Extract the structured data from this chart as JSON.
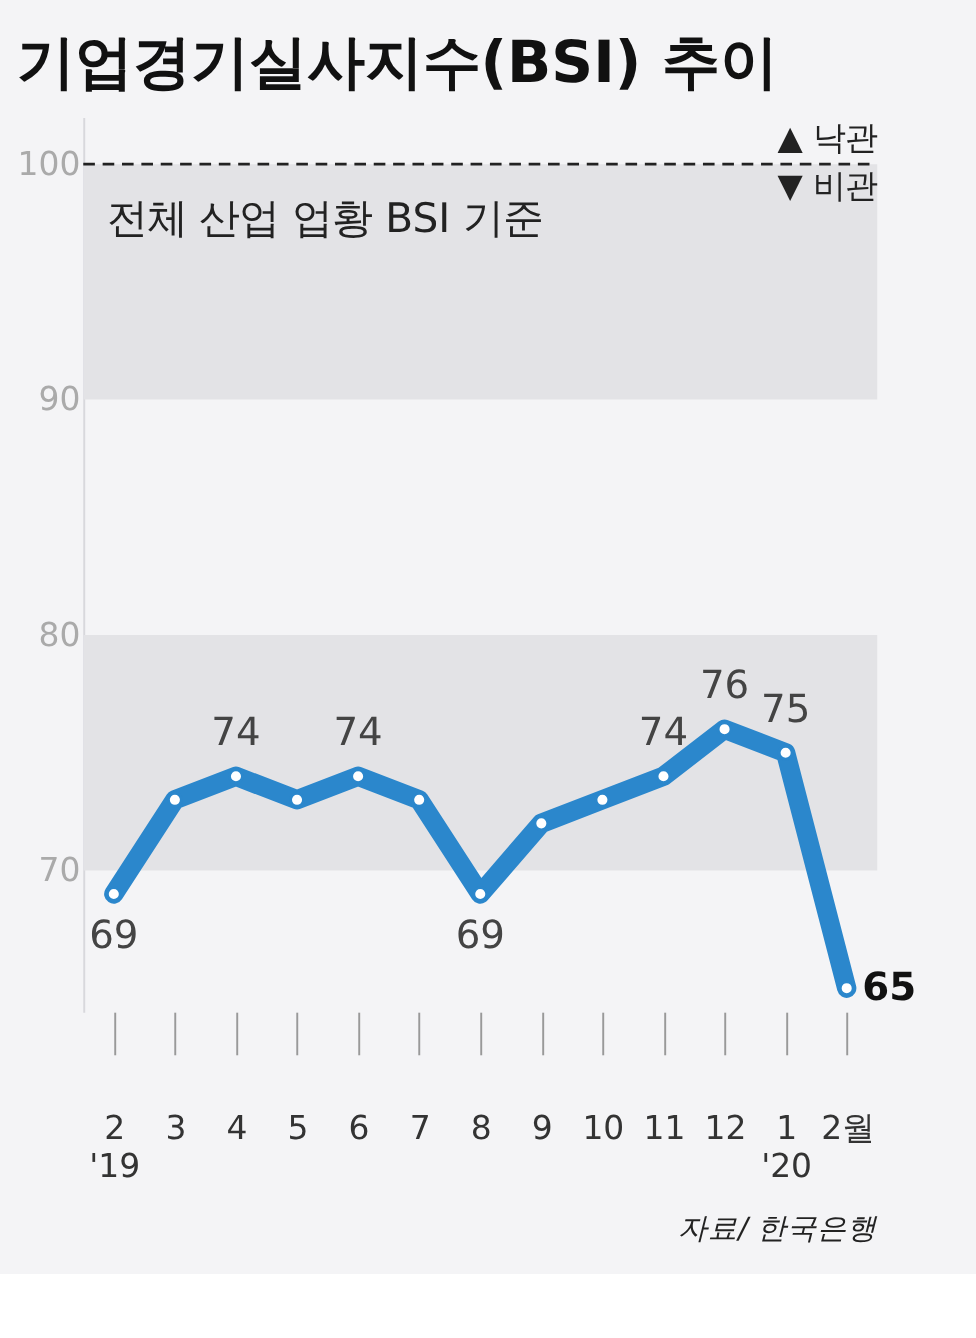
{
  "chart_data": {
    "type": "line",
    "title": "기업경기실사지수(BSI) 추이",
    "categories": [
      "2\n'19",
      "3",
      "4",
      "5",
      "6",
      "7",
      "8",
      "9",
      "10",
      "11",
      "12",
      "1\n'20",
      "2월"
    ],
    "series": [
      {
        "color": "#2b87cc",
        "values": [
          69,
          73,
          74,
          73,
          74,
          73,
          69,
          72,
          73,
          74,
          76,
          75,
          65
        ],
        "value_labels": [
          "69",
          null,
          "74",
          null,
          "74",
          null,
          "69",
          null,
          null,
          "74",
          "76",
          "75",
          "65"
        ]
      }
    ],
    "ylim": [
      64,
      102
    ],
    "yticks": [
      70,
      80,
      90,
      100
    ],
    "marker": "circle",
    "line_style": "solid",
    "ref_lines": [
      {
        "axis": "y",
        "value": 100,
        "label": null,
        "line_style": "dashed",
        "color": "#222222"
      }
    ],
    "bands": [
      {
        "axis": "y",
        "from": 90,
        "to": 100,
        "label": null,
        "color": "#e3e3e6"
      },
      {
        "axis": "y",
        "from": 70,
        "to": 80,
        "label": null,
        "color": "#e3e3e6"
      }
    ],
    "annotations": [
      "▲ 낙관",
      "▼ 비관",
      "전체 산업 업황 BSI 기준",
      "자료/ 한국은행"
    ]
  }
}
